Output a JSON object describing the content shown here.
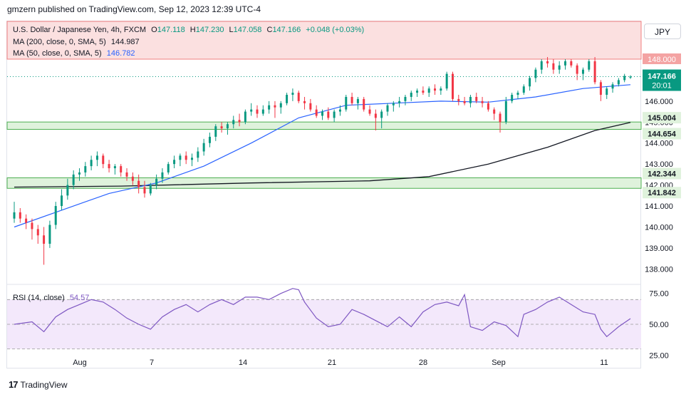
{
  "header": {
    "publish_line": "gmzern published on TradingView.com, Sep 12, 2023 12:39 UTC-4"
  },
  "currency_button": "JPY",
  "footer": {
    "brand": "TradingView"
  },
  "colors": {
    "up": "#089981",
    "down": "#f23645",
    "ma200": "#131722",
    "ma50": "#2962ff",
    "rsi": "#7e57c2",
    "zone": "#4caf50"
  },
  "chart_data": [
    {
      "type": "candlestick",
      "title": "U.S. Dollar / Japanese Yen, 4h, FXCM",
      "ohlc": {
        "O_label": "O",
        "O": "147.118",
        "H_label": "H",
        "H": "147.230",
        "L_label": "L",
        "L": "147.058",
        "C_label": "C",
        "C": "147.166",
        "change": "+0.048 (+0.03%)"
      },
      "ylim": [
        137.4,
        149.8
      ],
      "yticks": [
        "148.000",
        "147.000",
        "146.000",
        "145.000",
        "144.000",
        "143.000",
        "142.000",
        "141.000",
        "140.000",
        "139.000",
        "138.000"
      ],
      "x_ticks": [
        "Aug",
        "7",
        "14",
        "21",
        "28",
        "Sep",
        "11"
      ],
      "overlays": [
        {
          "name": "MA (200, close, 0, SMA, 5)",
          "last_value": "144.987"
        },
        {
          "name": "MA (50, close, 0, SMA, 5)",
          "last_value": "146.782"
        }
      ],
      "price_labels": {
        "last": "147.166",
        "countdown": "20:01",
        "resistance_top": "148.000"
      },
      "zones": [
        {
          "from": 144.654,
          "to": 145.004,
          "labels": [
            "145.004",
            "144.654"
          ]
        },
        {
          "from": 141.842,
          "to": 142.344,
          "labels": [
            "142.344",
            "141.842"
          ]
        }
      ],
      "resistance_zone": {
        "from": 148.0,
        "to": 149.8
      },
      "close_path": [
        [
          0,
          140.7
        ],
        [
          2,
          140.2
        ],
        [
          4,
          139.9
        ],
        [
          6,
          139.2
        ],
        [
          8,
          141.0
        ],
        [
          11,
          142.5
        ],
        [
          13,
          142.9
        ],
        [
          15,
          143.4
        ],
        [
          17,
          142.8
        ],
        [
          19,
          142.6
        ],
        [
          21,
          142.2
        ],
        [
          23,
          141.6
        ],
        [
          25,
          142.3
        ],
        [
          27,
          143.0
        ],
        [
          29,
          143.4
        ],
        [
          31,
          143.2
        ],
        [
          33,
          144.0
        ],
        [
          35,
          144.8
        ],
        [
          37,
          144.7
        ],
        [
          39,
          145.1
        ],
        [
          41,
          145.5
        ],
        [
          43,
          145.6
        ],
        [
          46,
          145.9
        ],
        [
          48,
          146.3
        ],
        [
          50,
          145.9
        ],
        [
          52,
          145.6
        ],
        [
          54,
          145.3
        ],
        [
          56,
          145.2
        ],
        [
          58,
          146.2
        ],
        [
          60,
          145.9
        ],
        [
          62,
          145.6
        ],
        [
          64,
          145.2
        ],
        [
          66,
          145.9
        ],
        [
          68,
          146.0
        ],
        [
          70,
          146.4
        ],
        [
          72,
          146.5
        ],
        [
          74,
          146.6
        ],
        [
          76,
          147.3
        ],
        [
          77,
          146.1
        ],
        [
          79,
          145.9
        ],
        [
          81,
          146.2
        ],
        [
          83,
          145.9
        ],
        [
          85,
          145.4
        ],
        [
          86,
          146.0
        ],
        [
          88,
          146.4
        ],
        [
          90,
          147.2
        ],
        [
          92,
          147.9
        ],
        [
          94,
          147.7
        ],
        [
          96,
          147.4
        ],
        [
          98,
          146.8
        ],
        [
          100,
          146.6
        ],
        [
          101,
          147.0
        ],
        [
          102,
          147.0
        ],
        [
          104,
          147.17
        ]
      ],
      "candles": [
        [
          140.4,
          141.2,
          140.2,
          140.7
        ],
        [
          140.7,
          140.9,
          140.2,
          140.4
        ],
        [
          140.4,
          140.6,
          139.9,
          140.2
        ],
        [
          140.2,
          140.4,
          139.4,
          139.9
        ],
        [
          139.9,
          140.1,
          139.2,
          139.6
        ],
        [
          139.6,
          140.0,
          138.2,
          139.2
        ],
        [
          139.2,
          140.3,
          139.0,
          140.1
        ],
        [
          140.1,
          141.2,
          139.9,
          141.0
        ],
        [
          141.0,
          141.8,
          140.8,
          141.5
        ],
        [
          141.5,
          142.3,
          141.3,
          142.0
        ],
        [
          142.0,
          142.7,
          141.8,
          142.5
        ],
        [
          142.5,
          142.8,
          142.2,
          142.6
        ],
        [
          142.6,
          143.1,
          142.4,
          142.9
        ],
        [
          142.9,
          143.4,
          142.7,
          143.2
        ],
        [
          143.2,
          143.6,
          142.9,
          143.4
        ],
        [
          143.4,
          143.5,
          142.8,
          143.0
        ],
        [
          143.0,
          143.2,
          142.6,
          142.8
        ],
        [
          142.8,
          143.0,
          142.5,
          142.9
        ],
        [
          142.9,
          143.0,
          142.4,
          142.6
        ],
        [
          142.6,
          142.8,
          142.2,
          142.4
        ],
        [
          142.4,
          142.6,
          142.0,
          142.2
        ],
        [
          142.2,
          142.5,
          141.6,
          141.9
        ],
        [
          141.9,
          142.2,
          141.4,
          141.6
        ],
        [
          141.6,
          142.1,
          141.5,
          142.0
        ],
        [
          142.0,
          142.5,
          141.8,
          142.3
        ],
        [
          142.3,
          142.8,
          142.1,
          142.6
        ],
        [
          142.6,
          143.1,
          142.5,
          143.0
        ],
        [
          143.0,
          143.4,
          142.8,
          143.2
        ],
        [
          143.2,
          143.5,
          142.9,
          143.4
        ],
        [
          143.4,
          143.6,
          143.0,
          143.2
        ],
        [
          143.2,
          143.5,
          142.9,
          143.3
        ],
        [
          143.3,
          143.8,
          143.1,
          143.6
        ],
        [
          143.6,
          144.2,
          143.4,
          144.0
        ],
        [
          144.0,
          144.5,
          143.8,
          144.3
        ],
        [
          144.3,
          144.9,
          144.1,
          144.8
        ],
        [
          144.8,
          145.0,
          144.5,
          144.7
        ],
        [
          144.7,
          145.0,
          144.4,
          144.9
        ],
        [
          144.9,
          145.3,
          144.7,
          145.1
        ],
        [
          145.1,
          145.4,
          144.8,
          145.0
        ],
        [
          145.0,
          145.6,
          144.9,
          145.5
        ],
        [
          145.5,
          145.9,
          145.3,
          145.6
        ],
        [
          145.6,
          145.8,
          145.2,
          145.4
        ],
        [
          145.4,
          145.8,
          145.3,
          145.6
        ],
        [
          145.6,
          146.0,
          145.4,
          145.8
        ],
        [
          145.8,
          146.0,
          145.2,
          145.7
        ],
        [
          145.7,
          146.0,
          145.4,
          145.9
        ],
        [
          145.9,
          146.4,
          145.8,
          146.3
        ],
        [
          146.3,
          146.6,
          146.0,
          146.4
        ],
        [
          146.4,
          146.5,
          145.9,
          146.0
        ],
        [
          146.0,
          146.2,
          145.6,
          145.9
        ],
        [
          145.9,
          146.1,
          145.5,
          145.6
        ],
        [
          145.6,
          145.8,
          145.2,
          145.3
        ],
        [
          145.3,
          145.6,
          145.1,
          145.5
        ],
        [
          145.5,
          145.7,
          145.1,
          145.2
        ],
        [
          145.2,
          145.6,
          145.0,
          145.5
        ],
        [
          145.5,
          145.8,
          145.3,
          145.6
        ],
        [
          145.6,
          146.3,
          145.5,
          146.2
        ],
        [
          146.2,
          146.4,
          145.8,
          145.9
        ],
        [
          145.9,
          146.2,
          145.6,
          146.1
        ],
        [
          146.1,
          146.2,
          145.5,
          145.6
        ],
        [
          145.6,
          145.8,
          145.3,
          145.4
        ],
        [
          145.4,
          145.6,
          144.6,
          145.2
        ],
        [
          145.2,
          145.6,
          144.7,
          145.5
        ],
        [
          145.5,
          145.9,
          145.3,
          145.8
        ],
        [
          145.8,
          146.0,
          145.5,
          145.9
        ],
        [
          145.9,
          146.2,
          145.7,
          146.0
        ],
        [
          146.0,
          146.3,
          145.8,
          146.2
        ],
        [
          146.2,
          146.5,
          146.0,
          146.4
        ],
        [
          146.4,
          146.6,
          146.2,
          146.5
        ],
        [
          146.5,
          146.7,
          146.3,
          146.4
        ],
        [
          146.4,
          146.7,
          146.2,
          146.6
        ],
        [
          146.6,
          146.8,
          146.3,
          146.5
        ],
        [
          146.5,
          146.7,
          146.3,
          146.6
        ],
        [
          146.6,
          147.4,
          146.5,
          147.3
        ],
        [
          147.3,
          147.4,
          146.0,
          146.1
        ],
        [
          146.1,
          146.3,
          145.8,
          146.0
        ],
        [
          146.0,
          146.2,
          145.8,
          145.9
        ],
        [
          145.9,
          146.3,
          145.7,
          146.2
        ],
        [
          146.2,
          146.4,
          145.9,
          146.0
        ],
        [
          146.0,
          146.2,
          145.7,
          145.9
        ],
        [
          145.9,
          146.0,
          145.5,
          145.6
        ],
        [
          145.6,
          145.7,
          145.1,
          145.4
        ],
        [
          145.4,
          145.5,
          144.5,
          145.0
        ],
        [
          145.0,
          146.2,
          144.9,
          146.0
        ],
        [
          146.0,
          146.4,
          145.9,
          146.3
        ],
        [
          146.3,
          146.5,
          146.1,
          146.4
        ],
        [
          146.4,
          146.8,
          146.3,
          146.7
        ],
        [
          146.7,
          147.2,
          146.5,
          147.1
        ],
        [
          147.1,
          147.6,
          146.9,
          147.5
        ],
        [
          147.5,
          148.0,
          147.3,
          147.9
        ],
        [
          147.9,
          148.1,
          147.6,
          147.8
        ],
        [
          147.8,
          148.0,
          147.3,
          147.5
        ],
        [
          147.5,
          147.9,
          147.3,
          147.7
        ],
        [
          147.7,
          148.0,
          147.5,
          147.9
        ],
        [
          147.9,
          148.0,
          147.6,
          147.7
        ],
        [
          147.7,
          147.8,
          147.0,
          147.3
        ],
        [
          147.3,
          147.6,
          147.0,
          147.5
        ],
        [
          147.5,
          148.0,
          147.4,
          147.9
        ],
        [
          147.9,
          148.1,
          146.8,
          146.9
        ],
        [
          146.9,
          147.0,
          146.0,
          146.3
        ],
        [
          146.3,
          146.7,
          146.1,
          146.6
        ],
        [
          146.6,
          146.9,
          146.4,
          146.8
        ],
        [
          146.8,
          147.1,
          146.7,
          147.0
        ],
        [
          147.0,
          147.3,
          146.9,
          147.2
        ],
        [
          147.118,
          147.23,
          147.058,
          147.166
        ]
      ],
      "ma200": [
        [
          0,
          141.9
        ],
        [
          18,
          141.95
        ],
        [
          40,
          142.1
        ],
        [
          60,
          142.2
        ],
        [
          70,
          142.4
        ],
        [
          80,
          143.0
        ],
        [
          90,
          143.8
        ],
        [
          98,
          144.6
        ],
        [
          104,
          144.987
        ]
      ],
      "ma50": [
        [
          0,
          140.0
        ],
        [
          8,
          140.8
        ],
        [
          16,
          141.6
        ],
        [
          24,
          142.1
        ],
        [
          32,
          142.9
        ],
        [
          40,
          144.0
        ],
        [
          48,
          145.2
        ],
        [
          56,
          145.8
        ],
        [
          64,
          145.9
        ],
        [
          72,
          146.0
        ],
        [
          80,
          145.95
        ],
        [
          88,
          146.2
        ],
        [
          96,
          146.6
        ],
        [
          104,
          146.782
        ]
      ]
    },
    {
      "type": "line",
      "title": "RSI (14, close)",
      "last_value": "54.57",
      "ylim": [
        24,
        80
      ],
      "yticks": [
        "75.00",
        "50.00",
        "25.00"
      ],
      "band": [
        30,
        70
      ],
      "values": [
        [
          0,
          50
        ],
        [
          3,
          52
        ],
        [
          5,
          44
        ],
        [
          7,
          56
        ],
        [
          9,
          62
        ],
        [
          11,
          66
        ],
        [
          13,
          70
        ],
        [
          15,
          68
        ],
        [
          17,
          62
        ],
        [
          19,
          55
        ],
        [
          21,
          50
        ],
        [
          23,
          46
        ],
        [
          25,
          56
        ],
        [
          27,
          62
        ],
        [
          29,
          66
        ],
        [
          31,
          60
        ],
        [
          33,
          66
        ],
        [
          35,
          70
        ],
        [
          37,
          66
        ],
        [
          39,
          72
        ],
        [
          41,
          72
        ],
        [
          43,
          70
        ],
        [
          45,
          75
        ],
        [
          47,
          79
        ],
        [
          48,
          78
        ],
        [
          49,
          68
        ],
        [
          51,
          55
        ],
        [
          53,
          48
        ],
        [
          55,
          50
        ],
        [
          57,
          62
        ],
        [
          59,
          58
        ],
        [
          61,
          53
        ],
        [
          63,
          48
        ],
        [
          65,
          56
        ],
        [
          67,
          48
        ],
        [
          69,
          60
        ],
        [
          71,
          66
        ],
        [
          73,
          68
        ],
        [
          75,
          65
        ],
        [
          76,
          74
        ],
        [
          77,
          48
        ],
        [
          79,
          45
        ],
        [
          81,
          52
        ],
        [
          83,
          49
        ],
        [
          85,
          40
        ],
        [
          86,
          58
        ],
        [
          88,
          62
        ],
        [
          90,
          68
        ],
        [
          92,
          72
        ],
        [
          94,
          66
        ],
        [
          96,
          60
        ],
        [
          98,
          58
        ],
        [
          99,
          46
        ],
        [
          100,
          40
        ],
        [
          101,
          44
        ],
        [
          102,
          48
        ],
        [
          104,
          54.57
        ]
      ]
    }
  ]
}
